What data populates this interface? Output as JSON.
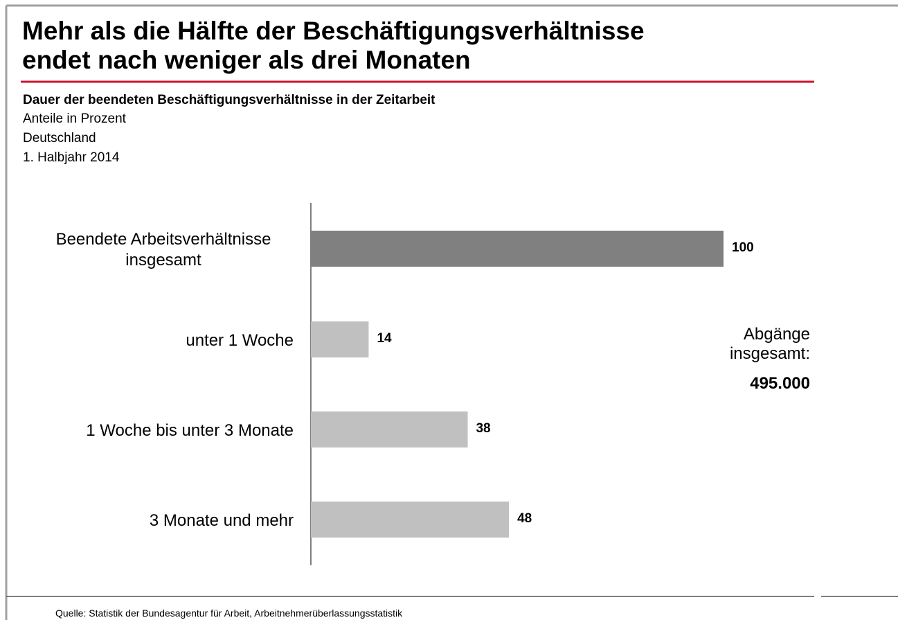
{
  "chart_data": {
    "type": "hbar",
    "title": [
      "Mehr als die Hälfte der Beschäftigungsverhältnisse",
      "endet nach weniger als drei Monaten"
    ],
    "subtitle": "Dauer der beendeten Beschäftigungsverhältnisse in der Zeitarbeit",
    "notes": [
      "Anteile in Prozent",
      "Deutschland",
      "1. Halbjahr 2014"
    ],
    "categories": [
      "Beendete Arbeitsverhältnisse insgesamt",
      "unter 1 Woche",
      "1 Woche bis unter 3 Monate",
      "3 Monate und mehr"
    ],
    "values": [
      100,
      14,
      38,
      48
    ],
    "colors": [
      "#808080",
      "#c0c0c0",
      "#c0c0c0",
      "#c0c0c0"
    ],
    "xlim": [
      0,
      100
    ],
    "annotation": {
      "label": "Abgänge insgesamt:",
      "value": "495.000"
    },
    "source": "Quelle: Statistik der Bundesagentur für Arbeit, Arbeitnehmerüberlassungsstatistik"
  }
}
